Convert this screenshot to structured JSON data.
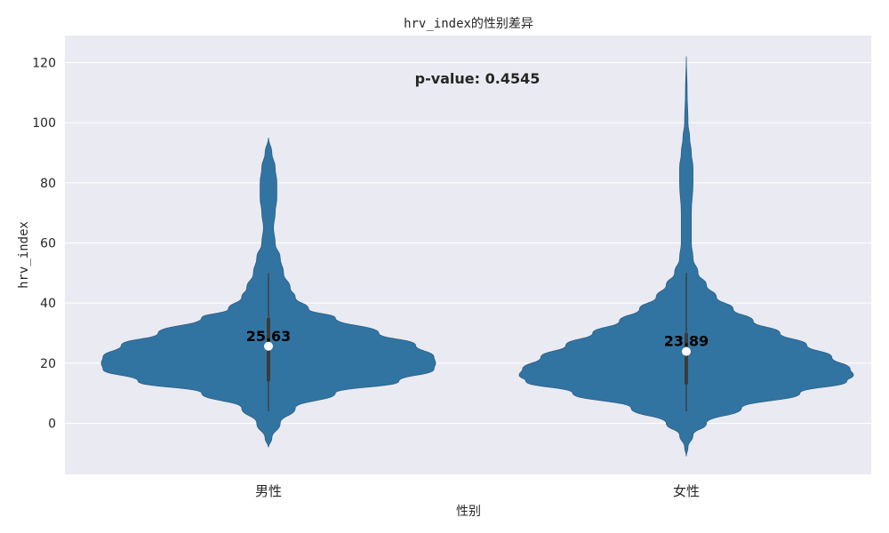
{
  "chart_data": {
    "type": "violin",
    "title": "hrv_index的性别差异",
    "xlabel": "性别",
    "ylabel": "hrv_index",
    "ylim": [
      -17,
      129
    ],
    "yticks": [
      0,
      20,
      40,
      60,
      80,
      100,
      120
    ],
    "grid": true,
    "annotation": "p-value: 0.4545",
    "categories": [
      "男性",
      "女性"
    ],
    "colors": {
      "violin": "#3274a1",
      "background": "#eaeaf2",
      "grid": "#ffffff",
      "whisker": "#3b3b3b",
      "median": "#ffffff"
    },
    "violins": [
      {
        "category": "男性",
        "mean": 25.63,
        "mean_label": "25.63",
        "range": [
          4,
          50
        ],
        "iqr": [
          14,
          35
        ],
        "median": 25.63,
        "extent": [
          -8,
          95
        ],
        "density": [
          [
            -8,
            0.0
          ],
          [
            -5,
            0.02
          ],
          [
            0,
            0.07
          ],
          [
            5,
            0.16
          ],
          [
            10,
            0.4
          ],
          [
            14,
            0.78
          ],
          [
            18,
            0.99
          ],
          [
            20,
            1.0
          ],
          [
            22,
            0.99
          ],
          [
            26,
            0.88
          ],
          [
            30,
            0.66
          ],
          [
            35,
            0.4
          ],
          [
            38,
            0.24
          ],
          [
            42,
            0.16
          ],
          [
            45,
            0.13
          ],
          [
            50,
            0.09
          ],
          [
            55,
            0.07
          ],
          [
            60,
            0.04
          ],
          [
            65,
            0.03
          ],
          [
            70,
            0.04
          ],
          [
            75,
            0.05
          ],
          [
            80,
            0.05
          ],
          [
            85,
            0.04
          ],
          [
            90,
            0.02
          ],
          [
            95,
            0.0
          ]
        ]
      },
      {
        "category": "女性",
        "mean": 23.89,
        "mean_label": "23.89",
        "range": [
          4,
          50
        ],
        "iqr": [
          13,
          30
        ],
        "median": 23.89,
        "extent": [
          -11,
          122
        ],
        "density": [
          [
            -11,
            0.0
          ],
          [
            -8,
            0.01
          ],
          [
            -4,
            0.04
          ],
          [
            0,
            0.12
          ],
          [
            5,
            0.33
          ],
          [
            10,
            0.68
          ],
          [
            14,
            0.96
          ],
          [
            16,
            1.0
          ],
          [
            18,
            0.98
          ],
          [
            22,
            0.87
          ],
          [
            26,
            0.72
          ],
          [
            30,
            0.56
          ],
          [
            34,
            0.4
          ],
          [
            38,
            0.28
          ],
          [
            42,
            0.18
          ],
          [
            46,
            0.12
          ],
          [
            50,
            0.07
          ],
          [
            55,
            0.04
          ],
          [
            60,
            0.03
          ],
          [
            70,
            0.03
          ],
          [
            80,
            0.04
          ],
          [
            85,
            0.04
          ],
          [
            90,
            0.03
          ],
          [
            95,
            0.02
          ],
          [
            100,
            0.01
          ],
          [
            110,
            0.005
          ],
          [
            122,
            0.0
          ]
        ]
      }
    ]
  }
}
